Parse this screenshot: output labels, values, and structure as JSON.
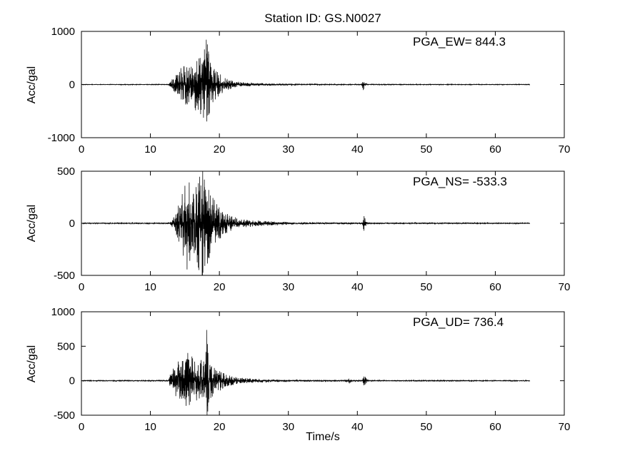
{
  "figure": {
    "title": "Station ID: GS.N0027",
    "background_color": "#ffffff",
    "line_color": "#000000"
  },
  "chart_data": [
    {
      "type": "line",
      "name": "EW",
      "annotation": "PGA_EW= 844.3",
      "ylabel": "Acc/gal",
      "xlabel": "",
      "xlim": [
        0,
        70
      ],
      "ylim": [
        -1000,
        1000
      ],
      "xticks": [
        0,
        10,
        20,
        30,
        40,
        50,
        60,
        70
      ],
      "yticks": [
        -1000,
        0,
        1000
      ],
      "pga": 844.3,
      "pga_time": 18.1,
      "signal_start": 0,
      "signal_end": 65,
      "envelope": [
        [
          0,
          4
        ],
        [
          12.5,
          5
        ],
        [
          13,
          80
        ],
        [
          13.8,
          200
        ],
        [
          14.5,
          330
        ],
        [
          15.2,
          420
        ],
        [
          15.8,
          300
        ],
        [
          16.4,
          560
        ],
        [
          17,
          480
        ],
        [
          17.6,
          700
        ],
        [
          18.1,
          860
        ],
        [
          18.45,
          760
        ],
        [
          18.8,
          420
        ],
        [
          19.3,
          300
        ],
        [
          20,
          210
        ],
        [
          20.8,
          130
        ],
        [
          21.6,
          85
        ],
        [
          22.5,
          55
        ],
        [
          24,
          35
        ],
        [
          26,
          25
        ],
        [
          28,
          18
        ],
        [
          31,
          12
        ],
        [
          35,
          9
        ],
        [
          38,
          7
        ],
        [
          40.6,
          6
        ],
        [
          40.85,
          120
        ],
        [
          41.15,
          50
        ],
        [
          41.5,
          6
        ],
        [
          45,
          6
        ],
        [
          55,
          5
        ],
        [
          65,
          5
        ]
      ]
    },
    {
      "type": "line",
      "name": "NS",
      "annotation": "PGA_NS= -533.3",
      "ylabel": "Acc/gal",
      "xlabel": "",
      "xlim": [
        0,
        70
      ],
      "ylim": [
        -500,
        500
      ],
      "xticks": [
        0,
        10,
        20,
        30,
        40,
        50,
        60,
        70
      ],
      "yticks": [
        -500,
        0,
        500
      ],
      "pga": -533.3,
      "pga_time": 17.5,
      "signal_start": 0,
      "signal_end": 65,
      "envelope": [
        [
          0,
          4
        ],
        [
          12.8,
          5
        ],
        [
          13.5,
          70
        ],
        [
          14.3,
          220
        ],
        [
          14.9,
          400
        ],
        [
          15.3,
          520
        ],
        [
          15.8,
          330
        ],
        [
          16.4,
          300
        ],
        [
          16.9,
          420
        ],
        [
          17.4,
          545
        ],
        [
          17.9,
          540
        ],
        [
          18.3,
          430
        ],
        [
          18.8,
          300
        ],
        [
          19.4,
          210
        ],
        [
          20,
          160
        ],
        [
          21,
          100
        ],
        [
          22,
          65
        ],
        [
          23.5,
          40
        ],
        [
          25.5,
          28
        ],
        [
          28,
          18
        ],
        [
          31,
          12
        ],
        [
          35,
          8
        ],
        [
          38,
          7
        ],
        [
          40.7,
          6
        ],
        [
          40.95,
          75
        ],
        [
          41.25,
          30
        ],
        [
          41.6,
          6
        ],
        [
          50,
          5
        ],
        [
          65,
          5
        ]
      ]
    },
    {
      "type": "line",
      "name": "UD",
      "annotation": "PGA_UD= 736.4",
      "ylabel": "Acc/gal",
      "xlabel": "Time/s",
      "xlim": [
        0,
        70
      ],
      "ylim": [
        -500,
        1000
      ],
      "xticks": [
        0,
        10,
        20,
        30,
        40,
        50,
        60,
        70
      ],
      "yticks": [
        -500,
        0,
        500,
        1000
      ],
      "pga": 736.4,
      "pga_time": 18.15,
      "signal_start": 0,
      "signal_end": 65,
      "envelope": [
        [
          0,
          5
        ],
        [
          12.6,
          6
        ],
        [
          13,
          140
        ],
        [
          13.6,
          240
        ],
        [
          14.2,
          300
        ],
        [
          14.8,
          340
        ],
        [
          15.4,
          420
        ],
        [
          16,
          360
        ],
        [
          16.6,
          300
        ],
        [
          17.2,
          330
        ],
        [
          17.8,
          300
        ],
        [
          18.15,
          740
        ],
        [
          18.5,
          280
        ],
        [
          19,
          230
        ],
        [
          19.8,
          170
        ],
        [
          20.6,
          110
        ],
        [
          21.5,
          75
        ],
        [
          22.5,
          50
        ],
        [
          24,
          35
        ],
        [
          26,
          26
        ],
        [
          28.5,
          18
        ],
        [
          31.5,
          13
        ],
        [
          35,
          10
        ],
        [
          38,
          9
        ],
        [
          38.9,
          40
        ],
        [
          39.2,
          12
        ],
        [
          40.7,
          8
        ],
        [
          41,
          85
        ],
        [
          41.35,
          25
        ],
        [
          41.7,
          7
        ],
        [
          50,
          6
        ],
        [
          65,
          5
        ]
      ]
    }
  ]
}
